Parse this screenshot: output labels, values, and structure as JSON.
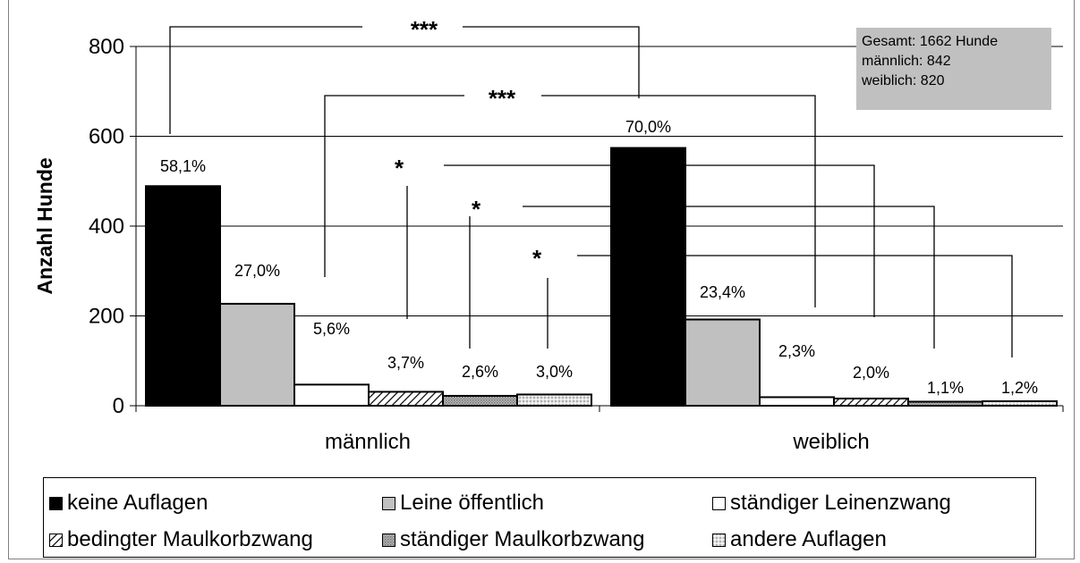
{
  "chart_data": {
    "type": "bar",
    "ylabel": "Anzahl Hunde",
    "ylim": [
      0,
      800
    ],
    "yticks": [
      0,
      200,
      400,
      600,
      800
    ],
    "grid": true,
    "categories": [
      "männlich",
      "weiblich"
    ],
    "series": [
      {
        "name": "keine Auflagen",
        "values": [
          489,
          574
        ],
        "labels": [
          "58,1%",
          "70,0%"
        ],
        "color": "#000000",
        "pattern": "solid"
      },
      {
        "name": "Leine öffentlich",
        "values": [
          227,
          192
        ],
        "labels": [
          "27,0%",
          "23,4%"
        ],
        "color": "#c0c0c0",
        "pattern": "solid"
      },
      {
        "name": "ständiger Leinenzwang",
        "values": [
          47,
          19
        ],
        "labels": [
          "5,6%",
          "2,3%"
        ],
        "color": "#ffffff",
        "pattern": "solid"
      },
      {
        "name": "bedingter Maulkorbzwang",
        "values": [
          31,
          16
        ],
        "labels": [
          "3,7%",
          "2,0%"
        ],
        "color": "#ffffff",
        "pattern": "diagonal"
      },
      {
        "name": "ständiger Maulkorbzwang",
        "values": [
          22,
          9
        ],
        "labels": [
          "2,6%",
          "1,1%"
        ],
        "color": "#ffffff",
        "pattern": "dense-dots"
      },
      {
        "name": "andere Auflagen",
        "values": [
          25,
          10
        ],
        "labels": [
          "3,0%",
          "1,2%"
        ],
        "color": "#ffffff",
        "pattern": "light-dots"
      }
    ],
    "significance": [
      "***",
      "***",
      "*",
      "*",
      "*"
    ],
    "legend_position": "bottom"
  },
  "infobox": {
    "lines": [
      "Gesamt: 1662 Hunde",
      "männlich: 842",
      "weiblich: 820"
    ]
  }
}
